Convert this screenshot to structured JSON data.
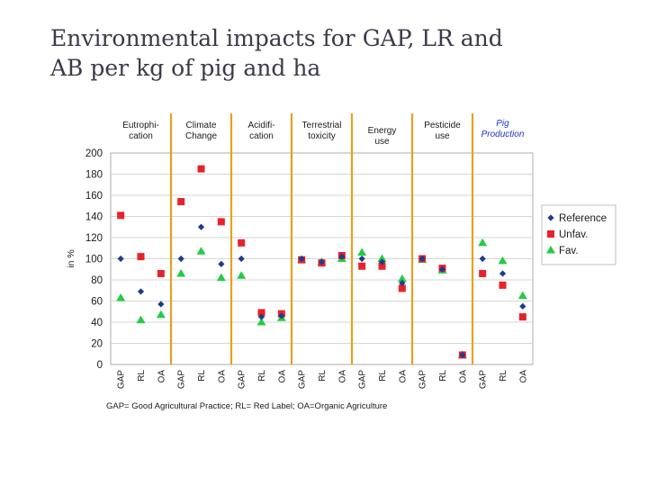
{
  "slide": {
    "title_line1": "Environmental impacts for GAP, LR and",
    "title_line2": "AB per kg of pig and ha"
  },
  "chart_data": {
    "type": "scatter",
    "ylabel": "in %",
    "ylim": [
      0,
      200
    ],
    "yticks": [
      0,
      20,
      40,
      60,
      80,
      100,
      120,
      140,
      160,
      180,
      200
    ],
    "categories": [
      "GAP",
      "RL",
      "OA",
      "GAP",
      "RL",
      "OA",
      "GAP",
      "RL",
      "OA",
      "GAP",
      "RL",
      "OA",
      "GAP",
      "RL",
      "OA",
      "GAP",
      "RL",
      "OA",
      "GAP",
      "RL",
      "OA"
    ],
    "groups": [
      {
        "label_line1": "Eutrophi-",
        "label_line2": "cation",
        "color": "#1a1a1a"
      },
      {
        "label_line1": "Climate",
        "label_line2": "Change",
        "color": "#1a1a1a"
      },
      {
        "label_line1": "Acidifi-",
        "label_line2": "cation",
        "color": "#1a1a1a"
      },
      {
        "label_line1": "Terrestrial",
        "label_line2": "toxicity",
        "color": "#1a1a1a"
      },
      {
        "label_line1": "Energy",
        "label_line2": "use",
        "color": "#1a1a1a"
      },
      {
        "label_line1": "Pesticide",
        "label_line2": "use",
        "color": "#1a1a1a"
      },
      {
        "label_line1": "Pig",
        "label_line2": "Production",
        "color": "#2233cc"
      }
    ],
    "series": [
      {
        "name": "Reference",
        "marker": "diamond",
        "color": "#1f3b8f",
        "values": [
          100,
          69,
          57,
          100,
          130,
          95,
          100,
          45,
          46,
          100,
          97,
          102,
          100,
          97,
          77,
          100,
          90,
          9,
          100,
          86,
          55
        ]
      },
      {
        "name": "Unfav.",
        "marker": "square",
        "color": "#e8222a",
        "values": [
          141,
          102,
          86,
          154,
          185,
          135,
          115,
          49,
          48,
          99,
          96,
          103,
          93,
          93,
          72,
          100,
          91,
          9,
          86,
          75,
          45
        ]
      },
      {
        "name": "Fav.",
        "marker": "triangle",
        "color": "#22cc44",
        "values": [
          63,
          42,
          47,
          86,
          107,
          82,
          84,
          40,
          44,
          99,
          97,
          100,
          106,
          100,
          81,
          99,
          89,
          9,
          115,
          98,
          65
        ]
      }
    ],
    "footnote": "GAP= Good Agricultural Practice;   RL= Red Label;   OA=Organic Agriculture",
    "grid": true,
    "legend_position": "right",
    "separator_color": "#e8a020"
  }
}
